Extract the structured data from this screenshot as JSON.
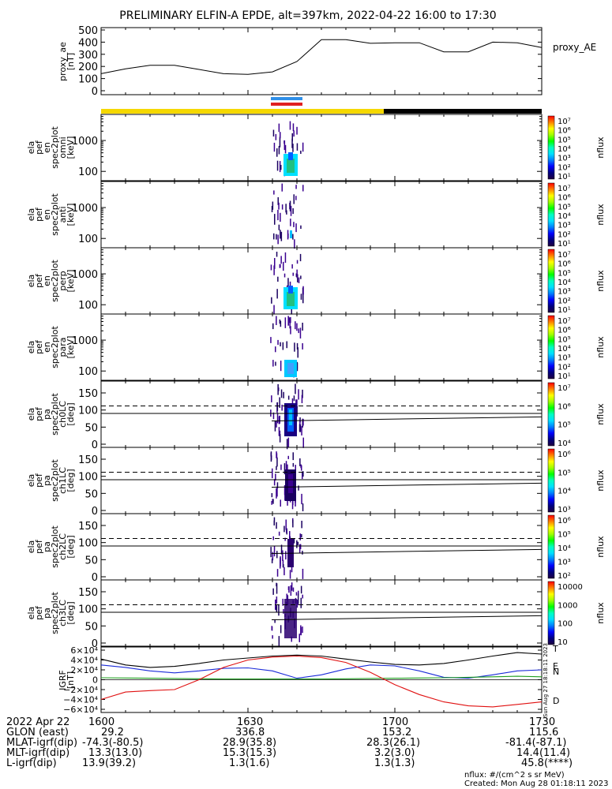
{
  "title": "PRELIMINARY ELFIN-A EPDE, alt=397km, 2022-04-22 16:00 to 17:30",
  "colors": {
    "day_bar": "#f5d800",
    "night_bar": "#000000",
    "science_zone_top": "#2f8fe8",
    "science_zone_bottom": "#e02020",
    "bx": "#000000",
    "by": "#1a2ad8",
    "bz": "#20a020",
    "d": "#e01010"
  },
  "colorbar_gradient": [
    "#ff0000",
    "#ff8000",
    "#ffff00",
    "#a0ff00",
    "#00ff00",
    "#00ffc0",
    "#00e0ff",
    "#0080ff",
    "#0000ff",
    "#000080",
    "#200040"
  ],
  "chart_data": {
    "type": "multi-panel",
    "x_ticks": [
      "1600",
      "1630",
      "1700",
      "1730"
    ],
    "panels": [
      {
        "id": "proxy_ae",
        "type": "line",
        "ylabel": [
          "proxy_ae",
          "[nT]"
        ],
        "yticks": [
          "500",
          "400",
          "300",
          "200",
          "100",
          "0"
        ],
        "ylim": [
          0,
          500
        ],
        "legend": "proxy_AE",
        "x_minutes": [
          0,
          5,
          10,
          15,
          20,
          25,
          30,
          35,
          40,
          45,
          50,
          55,
          60,
          65,
          70,
          75,
          80,
          85,
          90
        ],
        "values": [
          140,
          180,
          210,
          210,
          175,
          140,
          135,
          155,
          240,
          420,
          420,
          390,
          395,
          395,
          320,
          320,
          400,
          395,
          355
        ]
      },
      {
        "id": "ela_pef_en_spec2plot_omni",
        "type": "spectrogram",
        "ylabel": [
          "ela",
          "pef",
          "en",
          "spec2plot",
          "omni",
          "[keV]"
        ],
        "yticks": [
          "1000",
          "100"
        ],
        "colorbar_label": "nflux",
        "colorbar_ticks": [
          "10⁷",
          "10⁶",
          "10⁵",
          "10⁴",
          "10³",
          "10²",
          "10¹"
        ]
      },
      {
        "id": "ela_pef_en_spec2plot_anti",
        "type": "spectrogram",
        "ylabel": [
          "ela",
          "pef",
          "en",
          "spec2plot",
          "anti",
          "[keV]"
        ],
        "yticks": [
          "1000",
          "100"
        ],
        "colorbar_label": "nflux",
        "colorbar_ticks": [
          "10⁷",
          "10⁶",
          "10⁵",
          "10⁴",
          "10³",
          "10²",
          "10¹"
        ]
      },
      {
        "id": "ela_pef_en_spec2plot_perp",
        "type": "spectrogram",
        "ylabel": [
          "ela",
          "pef",
          "en",
          "spec2plot",
          "perp",
          "[keV]"
        ],
        "yticks": [
          "1000",
          "100"
        ],
        "colorbar_label": "nflux",
        "colorbar_ticks": [
          "10⁷",
          "10⁶",
          "10⁵",
          "10⁴",
          "10³",
          "10²",
          "10¹"
        ]
      },
      {
        "id": "ela_pef_en_spec2plot_para",
        "type": "spectrogram",
        "ylabel": [
          "ela",
          "pef",
          "en",
          "spec2plot",
          "para",
          "[keV]"
        ],
        "yticks": [
          "1000",
          "100"
        ],
        "colorbar_label": "nflux",
        "colorbar_ticks": [
          "10⁷",
          "10⁶",
          "10⁵",
          "10⁴",
          "10³",
          "10²",
          "10¹"
        ]
      },
      {
        "id": "ela_pef_pa_spec2plot_ch0LC",
        "type": "spectrogram",
        "ylabel": [
          "ela",
          "pef",
          "pa",
          "spec2plot",
          "ch0LC",
          "[deg]"
        ],
        "yticks": [
          "150",
          "100",
          "50",
          "0"
        ],
        "colorbar_label": "nflux",
        "colorbar_ticks": [
          "10⁷",
          "10⁶",
          "10⁵",
          "10⁴"
        ]
      },
      {
        "id": "ela_pef_pa_spec2plot_ch1LC",
        "type": "spectrogram",
        "ylabel": [
          "ela",
          "pef",
          "pa",
          "spec2plot",
          "ch1LC",
          "[deg]"
        ],
        "yticks": [
          "150",
          "100",
          "50",
          "0"
        ],
        "colorbar_label": "nflux",
        "colorbar_ticks": [
          "10⁶",
          "10⁵",
          "10⁴",
          "10³"
        ]
      },
      {
        "id": "ela_pef_pa_spec2plot_ch2LC",
        "type": "spectrogram",
        "ylabel": [
          "ela",
          "pef",
          "pa",
          "spec2plot",
          "ch2LC",
          "[deg]"
        ],
        "yticks": [
          "150",
          "100",
          "50",
          "0"
        ],
        "colorbar_label": "nflux",
        "colorbar_ticks": [
          "10⁶",
          "10⁵",
          "10⁴",
          "10³",
          "10²"
        ]
      },
      {
        "id": "ela_pef_pa_spec2plot_ch3LC",
        "type": "spectrogram",
        "ylabel": [
          "ela",
          "pef",
          "pa",
          "spec2plot",
          "ch3LC",
          "[deg]"
        ],
        "yticks": [
          "150",
          "100",
          "50",
          "0"
        ],
        "colorbar_label": "nflux",
        "colorbar_ticks": [
          "10000",
          "1000",
          "100",
          "10"
        ]
      },
      {
        "id": "igrf",
        "type": "line",
        "ylabel": [
          "IGRF",
          "[nT]"
        ],
        "yticks": [
          "6×10⁴",
          "4×10⁴",
          "2×10⁴",
          "0",
          "−2×10⁴",
          "−4×10⁴",
          "−6×10⁴"
        ],
        "ylim": [
          -60000,
          60000
        ],
        "side_labels": [
          "T",
          "E",
          "N",
          "D"
        ],
        "side_note": "Sun Aug 27 18:18:11 2023",
        "x_minutes": [
          0,
          5,
          10,
          15,
          20,
          25,
          30,
          35,
          40,
          45,
          50,
          55,
          60,
          65,
          70,
          75,
          80,
          85,
          90
        ],
        "series": [
          {
            "name": "T",
            "values": [
              42000,
              30000,
              25000,
              27000,
              33000,
              40000,
              44000,
              48000,
              50000,
              48000,
              42000,
              36000,
              31000,
              30000,
              33000,
              40000,
              48000,
              55000,
              52000
            ]
          },
          {
            "name": "E",
            "values": [
              30000,
              25000,
              18000,
              14000,
              18000,
              23000,
              24000,
              18000,
              3000,
              10000,
              22000,
              30000,
              28000,
              18000,
              5000,
              3000,
              10000,
              18000,
              20000
            ]
          },
          {
            "name": "N",
            "values": [
              4000,
              3500,
              3000,
              2500,
              2000,
              1500,
              1500,
              1500,
              1500,
              1500,
              2000,
              2500,
              3000,
              3500,
              4000,
              5000,
              6000,
              7000,
              6000
            ]
          },
          {
            "name": "D",
            "values": [
              -40000,
              -25000,
              -22000,
              -20000,
              0,
              25000,
              40000,
              46000,
              48000,
              45000,
              35000,
              15000,
              -10000,
              -30000,
              -45000,
              -53000,
              -55000,
              -50000,
              -45000
            ]
          }
        ]
      }
    ],
    "footer": {
      "rows": [
        {
          "label": "2022 Apr 22",
          "values": [
            "1600",
            "1630",
            "1700",
            "1730"
          ]
        },
        {
          "label": "GLON (east)",
          "values": [
            "29.2",
            "336.8",
            "153.2",
            "115.6"
          ]
        },
        {
          "label": "MLAT-igrf(dip)",
          "values": [
            "-74.3(-80.5)",
            "28.9(35.8)",
            "28.3(26.1)",
            "-81.4(-87.1)"
          ]
        },
        {
          "label": "MLT-igrf(dip)",
          "values": [
            "13.3(13.0)",
            "15.3(15.3)",
            "3.2(3.0)",
            "14.4(11.4)"
          ]
        },
        {
          "label": "L-igrf(dip)",
          "values": [
            "13.9(39.2)",
            "1.3(1.6)",
            "1.3(1.3)",
            "45.8(****)"
          ]
        }
      ],
      "units_note": "nflux: #/(cm^2 s sr MeV)",
      "created_note": "Created: Mon Aug 28 01:18:11 2023"
    }
  }
}
